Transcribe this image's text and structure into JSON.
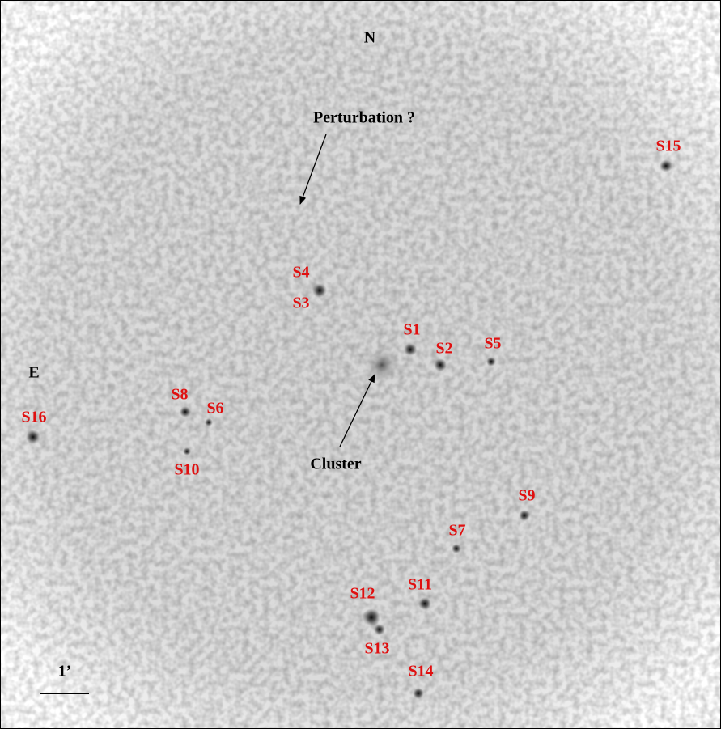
{
  "labels": {
    "north": "N",
    "east": "E",
    "perturbation": "Perturbation ?",
    "cluster": "Cluster",
    "scale": "1’"
  },
  "sources": [
    "S1",
    "S2",
    "S3",
    "S4",
    "S5",
    "S6",
    "S7",
    "S8",
    "S9",
    "S10",
    "S11",
    "S12",
    "S13",
    "S14",
    "S15",
    "S16"
  ]
}
